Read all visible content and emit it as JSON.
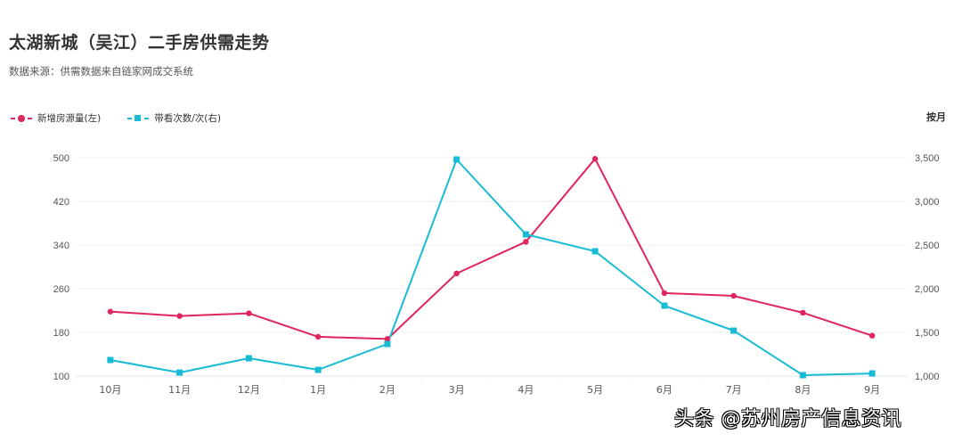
{
  "header": {
    "title": "太湖新城（吴江）二手房供需走势",
    "subtitle": "数据来源：供需数据来自链家网成交系统"
  },
  "legend": {
    "items": [
      {
        "label": "新增房源量(左)",
        "color": "#e0245e",
        "marker": "circle"
      },
      {
        "label": "带看次数/次(右)",
        "color": "#17bcd4",
        "marker": "square"
      }
    ]
  },
  "period_label": "按月",
  "watermark": "头条 @苏州房产信息资讯",
  "colors": {
    "series1": "#e0245e",
    "series2": "#17bcd4",
    "grid": "#efefef",
    "axis_text": "#555555"
  },
  "chart_data": {
    "type": "line",
    "title": "太湖新城（吴江）二手房供需走势",
    "subtitle": "数据来源：供需数据来自链家网成交系统",
    "categories": [
      "10月",
      "11月",
      "12月",
      "1月",
      "2月",
      "3月",
      "4月",
      "5月",
      "6月",
      "7月",
      "8月",
      "9月"
    ],
    "series": [
      {
        "name": "新增房源量(左)",
        "axis": "left",
        "marker": "circle",
        "color": "#e0245e",
        "values": [
          218,
          210,
          215,
          172,
          168,
          288,
          346,
          498,
          252,
          247,
          216,
          174
        ]
      },
      {
        "name": "带看次数/次(右)",
        "axis": "right",
        "marker": "square",
        "color": "#17bcd4",
        "values": [
          1184,
          1040,
          1204,
          1071,
          1367,
          3480,
          2622,
          2429,
          1806,
          1520,
          1010,
          1030
        ]
      }
    ],
    "y_left": {
      "ticks": [
        "100",
        "180",
        "260",
        "340",
        "420",
        "500"
      ],
      "ylim": [
        100,
        500
      ]
    },
    "y_right": {
      "ticks": [
        "1,000",
        "1,500",
        "2,000",
        "2,500",
        "3,000",
        "3,500"
      ],
      "ylim": [
        1000,
        3500
      ]
    },
    "xlabel": "",
    "ylabel_left": "",
    "ylabel_right": "",
    "grid": true,
    "legend_position": "top-left",
    "period": "按月"
  }
}
